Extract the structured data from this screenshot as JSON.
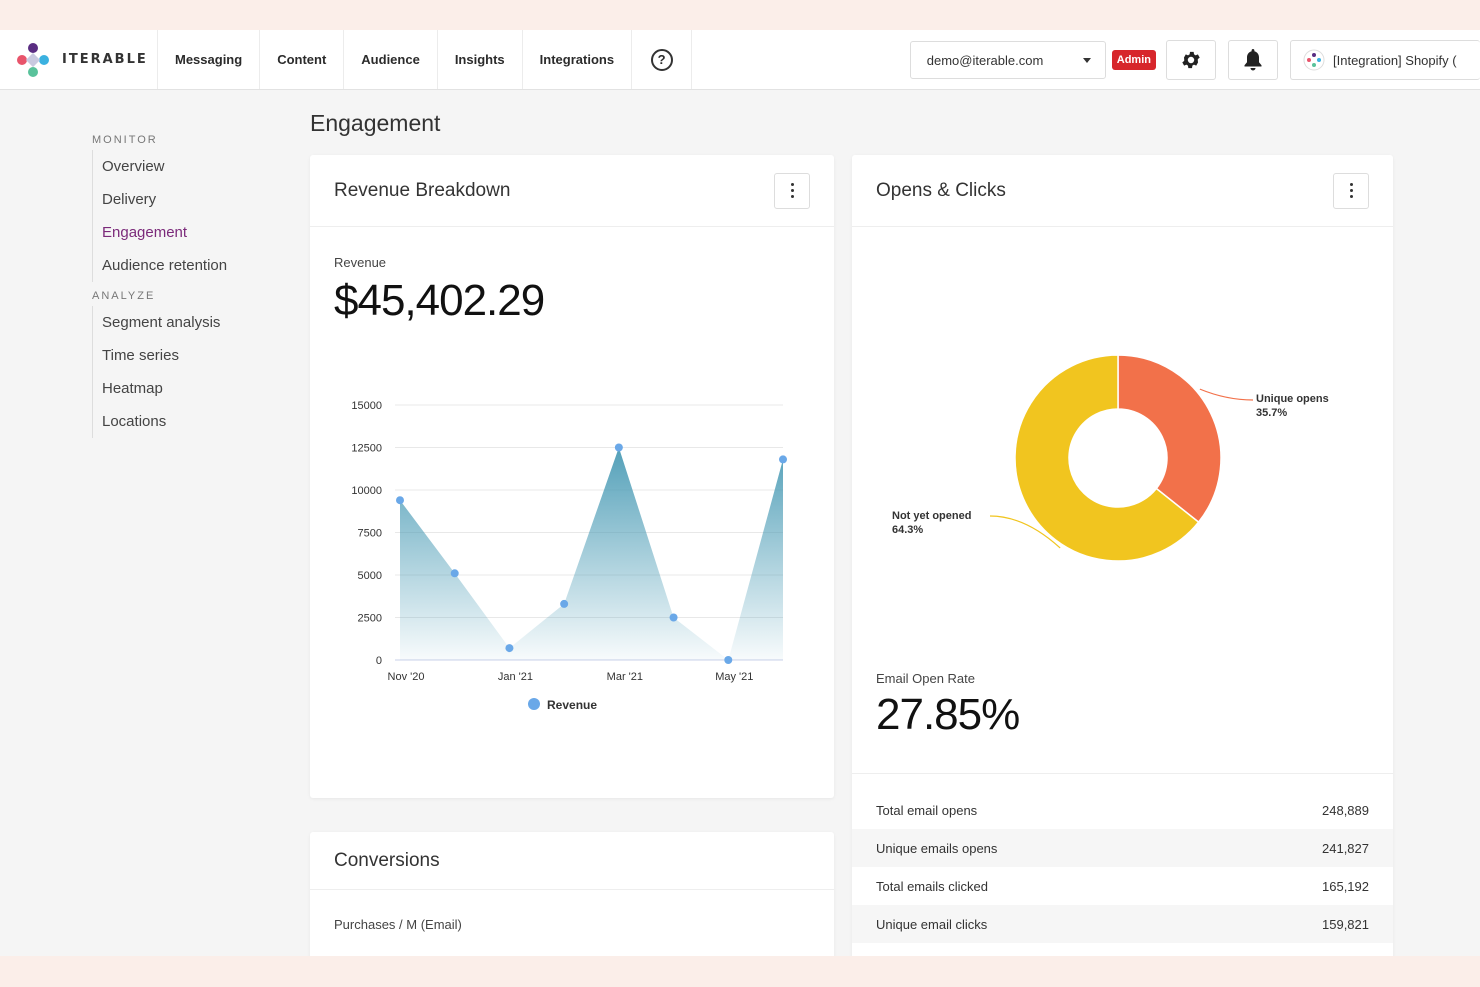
{
  "nav": {
    "brand": "ITERABLE",
    "items": [
      "Messaging",
      "Content",
      "Audience",
      "Insights",
      "Integrations"
    ],
    "help": "?",
    "org_select": "demo@iterable.com",
    "admin_badge": "Admin",
    "project": "[Integration] Shopify ("
  },
  "sidebar": {
    "sections": [
      {
        "title": "MONITOR",
        "items": [
          "Overview",
          "Delivery",
          "Engagement",
          "Audience retention"
        ]
      },
      {
        "title": "ANALYZE",
        "items": [
          "Segment analysis",
          "Time series",
          "Heatmap",
          "Locations"
        ]
      }
    ],
    "active": "Engagement"
  },
  "page": {
    "title": "Engagement"
  },
  "revenue_card": {
    "title": "Revenue Breakdown",
    "metric_label": "Revenue",
    "metric_value": "$45,402.29",
    "legend": "Revenue"
  },
  "opens_card": {
    "title": "Opens & Clicks",
    "rate_label": "Email Open Rate",
    "rate_value": "27.85%",
    "stats": [
      {
        "label": "Total email opens",
        "value": "248,889"
      },
      {
        "label": "Unique emails opens",
        "value": "241,827"
      },
      {
        "label": "Total emails clicked",
        "value": "165,192"
      },
      {
        "label": "Unique email clicks",
        "value": "159,821"
      }
    ]
  },
  "conversions_card": {
    "title": "Conversions",
    "metric_label": "Purchases / M (Email)"
  },
  "colors": {
    "accent_purple": "#7b2a7a",
    "admin_red": "#d7262b",
    "area_blue": "#4a9bb5",
    "point_blue": "#6aa8e8",
    "donut_orange": "#f2714a",
    "donut_yellow": "#f1c51f"
  },
  "chart_data": [
    {
      "type": "area",
      "x": [
        "Nov '20",
        "Dec '20",
        "Jan '21",
        "Feb '21",
        "Mar '21",
        "Apr '21",
        "May '21",
        "Jun '21"
      ],
      "xticks": [
        "Nov '20",
        "Jan '21",
        "Mar '21",
        "May '21"
      ],
      "series": [
        {
          "name": "Revenue",
          "values": [
            9400,
            5100,
            700,
            3300,
            12500,
            2500,
            0,
            11800
          ]
        }
      ],
      "ylim": [
        0,
        15000
      ],
      "yticks": [
        0,
        2500,
        5000,
        7500,
        10000,
        12500,
        15000
      ],
      "grid": true,
      "legend": "bottom"
    },
    {
      "type": "pie",
      "donut": true,
      "slices": [
        {
          "label": "Unique opens",
          "value": 35.7,
          "display": "35.7%",
          "color": "#f2714a"
        },
        {
          "label": "Not yet opened",
          "value": 64.3,
          "display": "64.3%",
          "color": "#f1c51f"
        }
      ]
    }
  ]
}
